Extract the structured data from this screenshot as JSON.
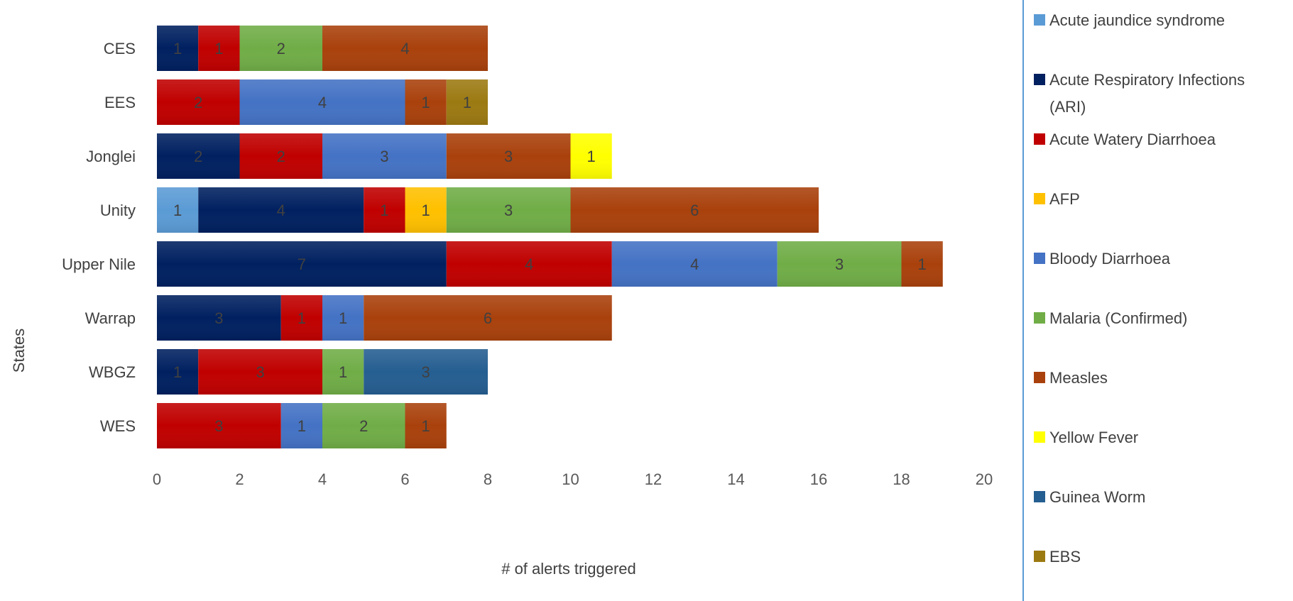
{
  "chart_data": {
    "type": "bar",
    "orientation": "horizontal",
    "stacked": true,
    "xlabel": "# of alerts triggered",
    "ylabel": "States",
    "xlim": [
      0,
      20
    ],
    "x_ticks": [
      0,
      2,
      4,
      6,
      8,
      10,
      12,
      14,
      16,
      18,
      20
    ],
    "grid": false,
    "legend_position": "right",
    "categories": [
      "CES",
      "EES",
      "Jonglei",
      "Unity",
      "Upper Nile",
      "Warrap",
      "WBGZ",
      "WES"
    ],
    "series": [
      {
        "name": "Acute jaundice syndrome",
        "color": "#5b9bd5",
        "label_color": "#404040",
        "values": [
          0,
          0,
          0,
          1,
          0,
          0,
          0,
          0
        ]
      },
      {
        "name": "Acute Respiratory Infections (ARI)",
        "color": "#002060",
        "label_color": "#404040",
        "values": [
          1,
          0,
          2,
          4,
          7,
          3,
          1,
          0
        ]
      },
      {
        "name": "Acute Watery Diarrhoea",
        "color": "#c00000",
        "label_color": "#404040",
        "values": [
          1,
          2,
          2,
          1,
          4,
          1,
          3,
          3
        ]
      },
      {
        "name": "AFP",
        "color": "#ffc000",
        "label_color": "#404040",
        "values": [
          0,
          0,
          0,
          1,
          0,
          0,
          0,
          0
        ]
      },
      {
        "name": "Bloody Diarrhoea",
        "color": "#4472c4",
        "label_color": "#404040",
        "values": [
          0,
          4,
          3,
          0,
          4,
          1,
          0,
          1
        ]
      },
      {
        "name": "Malaria (Confirmed)",
        "color": "#70ad47",
        "label_color": "#404040",
        "values": [
          2,
          0,
          0,
          3,
          3,
          0,
          1,
          2
        ]
      },
      {
        "name": "Measles",
        "color": "#a9410c",
        "label_color": "#404040",
        "values": [
          4,
          1,
          3,
          6,
          1,
          6,
          0,
          1
        ]
      },
      {
        "name": "Yellow Fever",
        "color": "#ffff00",
        "label_color": "#404040",
        "values": [
          0,
          0,
          1,
          0,
          0,
          0,
          0,
          0
        ]
      },
      {
        "name": "Guinea Worm",
        "color": "#255e91",
        "label_color": "#404040",
        "values": [
          0,
          0,
          0,
          0,
          0,
          0,
          3,
          0
        ]
      },
      {
        "name": "EBS",
        "color": "#9c7a12",
        "label_color": "#404040",
        "values": [
          0,
          1,
          0,
          0,
          0,
          0,
          0,
          0
        ]
      }
    ]
  },
  "legend_items": [
    {
      "name": "legend-item-acute-jaundice-syndrome",
      "lines": [
        "Acute jaundice syndrome"
      ]
    },
    {
      "name": "legend-item-ari",
      "lines": [
        "Acute Respiratory Infections",
        "(ARI)"
      ]
    },
    {
      "name": "legend-item-acute-watery-diarrhoea",
      "lines": [
        "Acute Watery Diarrhoea"
      ]
    },
    {
      "name": "legend-item-afp",
      "lines": [
        "AFP"
      ]
    },
    {
      "name": "legend-item-bloody-diarrhoea",
      "lines": [
        "Bloody Diarrhoea"
      ]
    },
    {
      "name": "legend-item-malaria-confirmed",
      "lines": [
        "Malaria (Confirmed)"
      ]
    },
    {
      "name": "legend-item-measles",
      "lines": [
        "Measles"
      ]
    },
    {
      "name": "legend-item-yellow-fever",
      "lines": [
        "Yellow Fever"
      ]
    },
    {
      "name": "legend-item-guinea-worm",
      "lines": [
        "Guinea Worm"
      ]
    },
    {
      "name": "legend-item-ebs",
      "lines": [
        "EBS"
      ]
    }
  ]
}
